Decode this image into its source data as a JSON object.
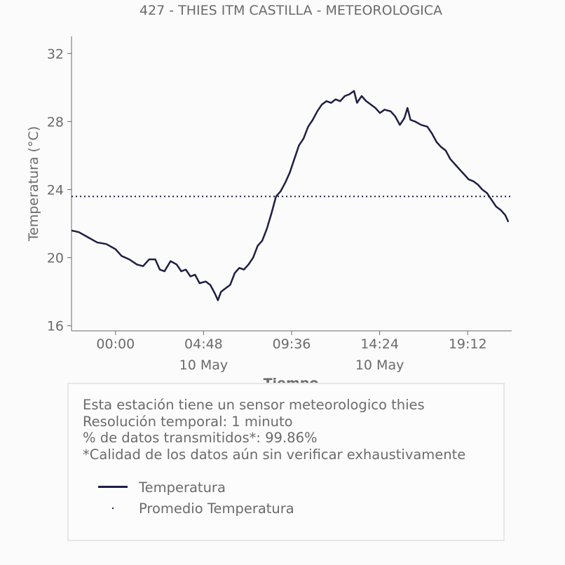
{
  "chart_data": {
    "type": "line",
    "title": "427 - THIES ITM CASTILLA - METEOROLOGICA",
    "xlabel": "Tiempo",
    "ylabel": "Temperatura (°C)",
    "ylim": [
      15.7,
      33.0
    ],
    "yticks": [
      16,
      20,
      24,
      28,
      32
    ],
    "xlim_hours_range_label": "",
    "xtick_labels": [
      {
        "time": "00:00",
        "date": ""
      },
      {
        "time": "04:48",
        "date": "10 May"
      },
      {
        "time": "09:36",
        "date": ""
      },
      {
        "time": "14:24",
        "date": "10 May"
      },
      {
        "time": "19:12",
        "date": ""
      }
    ],
    "grid": false,
    "series": [
      {
        "name": "Temperatura",
        "color": "#1f1f44",
        "style": "solid",
        "points": [
          [
            "09 May 21:36",
            21.6
          ],
          [
            "09 May 22:00",
            21.5
          ],
          [
            "09 May 22:30",
            21.2
          ],
          [
            "09 May 23:00",
            20.9
          ],
          [
            "09 May 23:30",
            20.8
          ],
          [
            "10 May 00:00",
            20.5
          ],
          [
            "10 May 00:20",
            20.1
          ],
          [
            "10 May 00:45",
            19.9
          ],
          [
            "10 May 01:10",
            19.6
          ],
          [
            "10 May 01:30",
            19.5
          ],
          [
            "10 May 01:50",
            19.9
          ],
          [
            "10 May 02:10",
            19.9
          ],
          [
            "10 May 02:25",
            19.3
          ],
          [
            "10 May 02:40",
            19.2
          ],
          [
            "10 May 03:00",
            19.8
          ],
          [
            "10 May 03:20",
            19.6
          ],
          [
            "10 May 03:35",
            19.2
          ],
          [
            "10 May 03:50",
            19.3
          ],
          [
            "10 May 04:05",
            18.9
          ],
          [
            "10 May 04:20",
            19.0
          ],
          [
            "10 May 04:35",
            18.5
          ],
          [
            "10 May 04:55",
            18.6
          ],
          [
            "10 May 05:10",
            18.4
          ],
          [
            "10 May 05:25",
            17.9
          ],
          [
            "10 May 05:35",
            17.5
          ],
          [
            "10 May 05:45",
            18.0
          ],
          [
            "10 May 06:00",
            18.2
          ],
          [
            "10 May 06:15",
            18.4
          ],
          [
            "10 May 06:30",
            19.1
          ],
          [
            "10 May 06:45",
            19.4
          ],
          [
            "10 May 07:00",
            19.3
          ],
          [
            "10 May 07:15",
            19.6
          ],
          [
            "10 May 07:30",
            20.0
          ],
          [
            "10 May 07:45",
            20.7
          ],
          [
            "10 May 08:00",
            21.0
          ],
          [
            "10 May 08:15",
            21.7
          ],
          [
            "10 May 08:30",
            22.6
          ],
          [
            "10 May 08:45",
            23.6
          ],
          [
            "10 May 09:00",
            23.9
          ],
          [
            "10 May 09:15",
            24.4
          ],
          [
            "10 May 09:30",
            25.0
          ],
          [
            "10 May 09:45",
            25.8
          ],
          [
            "10 May 10:00",
            26.6
          ],
          [
            "10 May 10:15",
            27.0
          ],
          [
            "10 May 10:30",
            27.7
          ],
          [
            "10 May 10:45",
            28.1
          ],
          [
            "10 May 11:00",
            28.6
          ],
          [
            "10 May 11:15",
            29.0
          ],
          [
            "10 May 11:30",
            29.2
          ],
          [
            "10 May 11:45",
            29.1
          ],
          [
            "10 May 12:00",
            29.3
          ],
          [
            "10 May 12:15",
            29.2
          ],
          [
            "10 May 12:30",
            29.5
          ],
          [
            "10 May 12:45",
            29.6
          ],
          [
            "10 May 13:00",
            29.8
          ],
          [
            "10 May 13:10",
            29.1
          ],
          [
            "10 May 13:25",
            29.5
          ],
          [
            "10 May 13:40",
            29.2
          ],
          [
            "10 May 13:55",
            29.0
          ],
          [
            "10 May 14:10",
            28.8
          ],
          [
            "10 May 14:25",
            28.5
          ],
          [
            "10 May 14:40",
            28.7
          ],
          [
            "10 May 15:00",
            28.6
          ],
          [
            "10 May 15:15",
            28.3
          ],
          [
            "10 May 15:30",
            27.8
          ],
          [
            "10 May 15:45",
            28.2
          ],
          [
            "10 May 15:55",
            28.8
          ],
          [
            "10 May 16:05",
            28.1
          ],
          [
            "10 May 16:20",
            28.0
          ],
          [
            "10 May 16:40",
            27.8
          ],
          [
            "10 May 17:00",
            27.7
          ],
          [
            "10 May 17:15",
            27.3
          ],
          [
            "10 May 17:30",
            26.8
          ],
          [
            "10 May 17:45",
            26.5
          ],
          [
            "10 May 18:00",
            26.3
          ],
          [
            "10 May 18:15",
            25.8
          ],
          [
            "10 May 18:30",
            25.5
          ],
          [
            "10 May 18:45",
            25.2
          ],
          [
            "10 May 19:00",
            24.9
          ],
          [
            "10 May 19:15",
            24.6
          ],
          [
            "10 May 19:30",
            24.5
          ],
          [
            "10 May 19:45",
            24.3
          ],
          [
            "10 May 20:00",
            24.0
          ],
          [
            "10 May 20:15",
            23.8
          ],
          [
            "10 May 20:30",
            23.4
          ],
          [
            "10 May 20:45",
            23.0
          ],
          [
            "10 May 21:00",
            22.8
          ],
          [
            "10 May 21:15",
            22.5
          ],
          [
            "10 May 21:25",
            22.1
          ]
        ]
      },
      {
        "name": "Promedio Temperatura",
        "color": "#1f1f44",
        "style": "dotted",
        "value": 23.6
      }
    ]
  },
  "info": {
    "lines": [
      "Esta estación tiene un sensor meteorologico thies",
      "Resolución temporal: 1 minuto",
      "% de datos transmitidos*: 99.86%",
      "*Calidad de los datos aún sin verificar exhaustivamente"
    ]
  },
  "legend": [
    {
      "label": "Temperatura"
    },
    {
      "label": "Promedio Temperatura"
    }
  ]
}
